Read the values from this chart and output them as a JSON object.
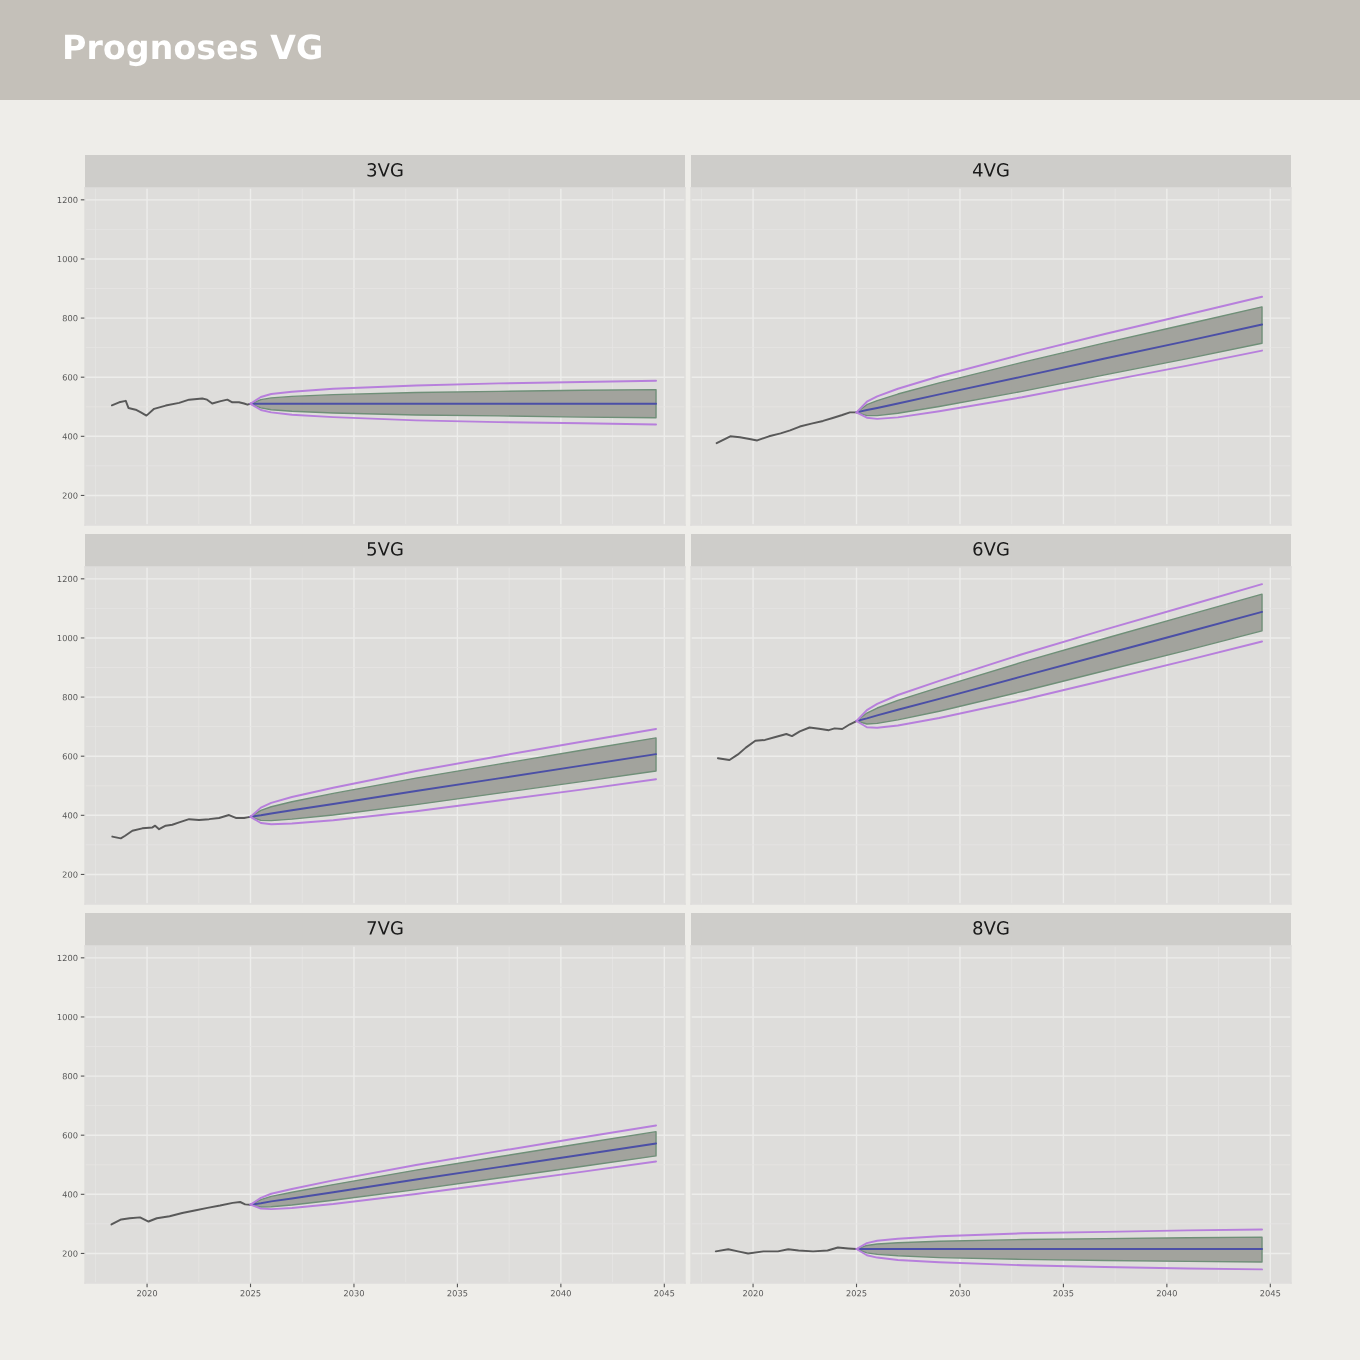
{
  "chart_data": [
    {
      "type": "other",
      "title": "Prognoses VG"
    },
    {
      "type": "line",
      "title": "3VG",
      "xlim": [
        2017,
        2046
      ],
      "xticks": [
        2020,
        2025,
        2030,
        2035,
        2040,
        2045
      ],
      "ylim": [
        100,
        1240
      ],
      "yticks": [
        200,
        400,
        600,
        800,
        1000,
        1200
      ],
      "grid": true,
      "tick_labels": "y",
      "series": [
        {
          "type": "line",
          "color": "#595959",
          "x": [
            2018.3,
            2018.65,
            2018.97,
            2019.1,
            2019.45,
            2019.7,
            2019.97,
            2020.34,
            2020.9,
            2021.55,
            2022.03,
            2022.67,
            2022.9,
            2023.15,
            2023.56,
            2023.88,
            2024.12,
            2024.44,
            2024.69,
            2024.85,
            2025.0
          ],
          "values": [
            505,
            515,
            520,
            496,
            490,
            481,
            470,
            493,
            504,
            513,
            524,
            528,
            524,
            511,
            519,
            524,
            515,
            515,
            511,
            507,
            510
          ]
        },
        {
          "type": "line",
          "color": "#4b4fa6",
          "x": [
            2025,
            2025.5,
            2026,
            2027,
            2029,
            2033,
            2037,
            2041,
            2044.6
          ],
          "values": [
            510,
            510,
            510,
            510,
            510,
            510,
            510,
            510,
            510
          ],
          "lower": [
            510,
            496,
            490,
            485,
            479,
            472,
            469,
            465,
            463
          ],
          "upper": [
            510,
            524,
            530,
            535,
            541,
            548,
            552,
            556,
            558
          ]
        },
        {
          "type": "line",
          "color": "#b77fdc",
          "x": [
            2025,
            2025.5,
            2026,
            2027,
            2029,
            2033,
            2037,
            2041,
            2044.6
          ],
          "values": [
            510,
            533,
            543,
            551,
            561,
            572,
            579,
            584,
            588
          ]
        },
        {
          "type": "line",
          "color": "#b77fdc",
          "x": [
            2025,
            2025.5,
            2026,
            2027,
            2029,
            2033,
            2037,
            2041,
            2044.6
          ],
          "values": [
            510,
            489,
            481,
            473,
            465,
            454,
            448,
            444,
            440
          ]
        }
      ]
    },
    {
      "type": "line",
      "title": "4VG",
      "xlim": [
        2017,
        2046
      ],
      "xticks": [
        2020,
        2025,
        2030,
        2035,
        2040,
        2045
      ],
      "ylim": [
        100,
        1240
      ],
      "yticks": [
        200,
        400,
        600,
        800,
        1000,
        1200
      ],
      "grid": true,
      "tick_labels": false,
      "series": [
        {
          "type": "line",
          "color": "#595959",
          "x": [
            2018.24,
            2018.9,
            2019.36,
            2019.83,
            2020.2,
            2020.77,
            2021.33,
            2021.79,
            2022.26,
            2022.82,
            2023.38,
            2023.85,
            2024.31,
            2024.68,
            2025.0
          ],
          "values": [
            377,
            400,
            397,
            391,
            386,
            400,
            410,
            420,
            433,
            443,
            452,
            462,
            472,
            481,
            481
          ]
        },
        {
          "type": "line",
          "color": "#4b4fa6",
          "x": [
            2025,
            2025.5,
            2026,
            2027,
            2029,
            2033,
            2037,
            2041,
            2044.6
          ],
          "values": [
            481,
            489,
            496,
            511,
            542,
            602,
            663,
            723,
            778
          ],
          "lower": [
            481,
            470,
            470,
            478,
            501,
            552,
            608,
            663,
            715
          ],
          "upper": [
            481,
            507,
            521,
            543,
            581,
            650,
            716,
            780,
            838
          ]
        },
        {
          "type": "line",
          "color": "#b77fdc",
          "x": [
            2025,
            2025.5,
            2026,
            2027,
            2029,
            2033,
            2037,
            2041,
            2044.6
          ],
          "values": [
            481,
            517,
            535,
            561,
            603,
            677,
            746,
            812,
            872
          ]
        },
        {
          "type": "line",
          "color": "#b77fdc",
          "x": [
            2025,
            2025.5,
            2026,
            2027,
            2029,
            2033,
            2037,
            2041,
            2044.6
          ],
          "values": [
            481,
            463,
            459,
            464,
            485,
            532,
            586,
            639,
            690
          ]
        }
      ]
    },
    {
      "type": "line",
      "title": "5VG",
      "xlim": [
        2017,
        2046
      ],
      "xticks": [
        2020,
        2025,
        2030,
        2035,
        2040,
        2045
      ],
      "ylim": [
        100,
        1240
      ],
      "yticks": [
        200,
        400,
        600,
        800,
        1000,
        1200
      ],
      "grid": true,
      "tick_labels": "y",
      "series": [
        {
          "type": "line",
          "color": "#595959",
          "x": [
            2018.32,
            2018.73,
            2018.94,
            2019.29,
            2019.77,
            2020.26,
            2020.39,
            2020.58,
            2020.9,
            2021.22,
            2021.55,
            2022.03,
            2022.51,
            2023.0,
            2023.48,
            2023.96,
            2024.29,
            2024.69,
            2024.85,
            2025.0
          ],
          "values": [
            328,
            322,
            331,
            348,
            356,
            359,
            365,
            353,
            365,
            368,
            376,
            387,
            384,
            387,
            391,
            401,
            391,
            391,
            393,
            395
          ]
        },
        {
          "type": "line",
          "color": "#4b4fa6",
          "x": [
            2025,
            2025.5,
            2026,
            2027,
            2029,
            2033,
            2037,
            2041,
            2044.6
          ],
          "values": [
            395,
            400,
            406,
            417,
            438,
            482,
            525,
            568,
            607
          ],
          "lower": [
            395,
            383,
            382,
            387,
            401,
            436,
            475,
            514,
            550
          ],
          "upper": [
            395,
            417,
            429,
            446,
            474,
            526,
            573,
            620,
            662
          ]
        },
        {
          "type": "line",
          "color": "#b77fdc",
          "x": [
            2025,
            2025.5,
            2026,
            2027,
            2029,
            2033,
            2037,
            2041,
            2044.6
          ],
          "values": [
            395,
            426,
            442,
            462,
            493,
            550,
            600,
            649,
            692
          ]
        },
        {
          "type": "line",
          "color": "#b77fdc",
          "x": [
            2025,
            2025.5,
            2026,
            2027,
            2029,
            2033,
            2037,
            2041,
            2044.6
          ],
          "values": [
            395,
            374,
            370,
            372,
            383,
            414,
            450,
            487,
            522
          ]
        }
      ]
    },
    {
      "type": "line",
      "title": "6VG",
      "xlim": [
        2017,
        2046
      ],
      "xticks": [
        2020,
        2025,
        2030,
        2035,
        2040,
        2045
      ],
      "ylim": [
        100,
        1240
      ],
      "yticks": [
        200,
        400,
        600,
        800,
        1000,
        1200
      ],
      "grid": true,
      "tick_labels": false,
      "series": [
        {
          "type": "line",
          "color": "#595959",
          "x": [
            2018.3,
            2018.86,
            2019.27,
            2019.65,
            2020.11,
            2020.58,
            2021.04,
            2021.61,
            2021.88,
            2022.26,
            2022.73,
            2023.19,
            2023.66,
            2023.94,
            2024.31,
            2024.68,
            2025.0
          ],
          "values": [
            593,
            587,
            606,
            629,
            652,
            655,
            664,
            675,
            668,
            684,
            697,
            693,
            688,
            694,
            692,
            708,
            719
          ]
        },
        {
          "type": "line",
          "color": "#4b4fa6",
          "x": [
            2025,
            2025.5,
            2026,
            2027,
            2029,
            2033,
            2037,
            2041,
            2044.6
          ],
          "values": [
            719,
            728,
            738,
            757,
            794,
            870,
            945,
            1020,
            1088
          ],
          "lower": [
            719,
            709,
            711,
            723,
            752,
            819,
            889,
            959,
            1024
          ],
          "upper": [
            719,
            746,
            763,
            789,
            833,
            918,
            998,
            1077,
            1148
          ]
        },
        {
          "type": "line",
          "color": "#b77fdc",
          "x": [
            2025,
            2025.5,
            2026,
            2027,
            2029,
            2033,
            2037,
            2041,
            2044.6
          ],
          "values": [
            719,
            756,
            777,
            807,
            855,
            945,
            1028,
            1109,
            1182
          ]
        },
        {
          "type": "line",
          "color": "#b77fdc",
          "x": [
            2025,
            2025.5,
            2026,
            2027,
            2029,
            2033,
            2037,
            2041,
            2044.6
          ],
          "values": [
            719,
            698,
            696,
            704,
            729,
            790,
            857,
            925,
            988
          ]
        }
      ]
    },
    {
      "type": "line",
      "title": "7VG",
      "xlim": [
        2017,
        2046
      ],
      "xticks": [
        2020,
        2025,
        2030,
        2035,
        2040,
        2045
      ],
      "ylim": [
        100,
        1240
      ],
      "yticks": [
        200,
        400,
        600,
        800,
        1000,
        1200
      ],
      "grid": true,
      "series": [
        {
          "type": "line",
          "color": "#595959",
          "x": [
            2018.28,
            2018.75,
            2019.16,
            2019.66,
            2020.07,
            2020.47,
            2021.09,
            2021.7,
            2022.3,
            2022.92,
            2023.53,
            2024.14,
            2024.5,
            2024.74,
            2025.0
          ],
          "values": [
            298,
            315,
            319,
            322,
            308,
            319,
            326,
            337,
            345,
            354,
            362,
            371,
            374,
            366,
            365
          ]
        },
        {
          "type": "line",
          "color": "#4b4fa6",
          "x": [
            2025,
            2025.5,
            2026,
            2027,
            2029,
            2033,
            2037,
            2041,
            2044.6
          ],
          "values": [
            365,
            370,
            376,
            386,
            407,
            450,
            492,
            534,
            572
          ],
          "lower": [
            365,
            357,
            358,
            364,
            380,
            416,
            455,
            494,
            530
          ],
          "upper": [
            365,
            382,
            393,
            407,
            433,
            482,
            527,
            572,
            612
          ]
        },
        {
          "type": "line",
          "color": "#b77fdc",
          "x": [
            2025,
            2025.5,
            2026,
            2027,
            2029,
            2033,
            2037,
            2041,
            2044.6
          ],
          "values": [
            365,
            388,
            402,
            418,
            447,
            499,
            546,
            592,
            633
          ]
        },
        {
          "type": "line",
          "color": "#b77fdc",
          "x": [
            2025,
            2025.5,
            2026,
            2027,
            2029,
            2033,
            2037,
            2041,
            2044.6
          ],
          "values": [
            365,
            352,
            350,
            354,
            367,
            401,
            438,
            476,
            511
          ]
        }
      ]
    },
    {
      "type": "line",
      "title": "8VG",
      "xlim": [
        2017,
        2046
      ],
      "xticks": [
        2020,
        2025,
        2030,
        2035,
        2040,
        2045
      ],
      "ylim": [
        100,
        1240
      ],
      "yticks": [
        200,
        400,
        600,
        800,
        1000,
        1200
      ],
      "grid": true,
      "tick_labels": "x",
      "series": [
        {
          "type": "line",
          "color": "#595959",
          "x": [
            2018.2,
            2018.8,
            2019.27,
            2019.76,
            2020.5,
            2021.2,
            2021.7,
            2022.2,
            2022.9,
            2023.6,
            2024.1,
            2024.6,
            2025.0
          ],
          "values": [
            207,
            214,
            207,
            200,
            207,
            207,
            214,
            210,
            207,
            210,
            220,
            217,
            215
          ]
        },
        {
          "type": "line",
          "color": "#4b4fa6",
          "x": [
            2025,
            2025.5,
            2026,
            2027,
            2029,
            2033,
            2037,
            2041,
            2044.6
          ],
          "values": [
            215,
            215,
            215,
            215,
            215,
            215,
            215,
            215,
            215
          ],
          "lower": [
            215,
            202,
            197,
            192,
            186,
            180,
            176,
            173,
            171
          ],
          "upper": [
            215,
            227,
            232,
            236,
            241,
            247,
            250,
            253,
            255
          ]
        },
        {
          "type": "line",
          "color": "#b77fdc",
          "x": [
            2025,
            2025.5,
            2026,
            2027,
            2029,
            2033,
            2037,
            2041,
            2044.6
          ],
          "values": [
            215,
            235,
            243,
            250,
            258,
            268,
            273,
            278,
            281
          ]
        },
        {
          "type": "line",
          "color": "#b77fdc",
          "x": [
            2025,
            2025.5,
            2026,
            2027,
            2029,
            2033,
            2037,
            2041,
            2044.6
          ],
          "values": [
            215,
            194,
            186,
            178,
            170,
            160,
            154,
            149,
            146
          ]
        }
      ]
    }
  ]
}
